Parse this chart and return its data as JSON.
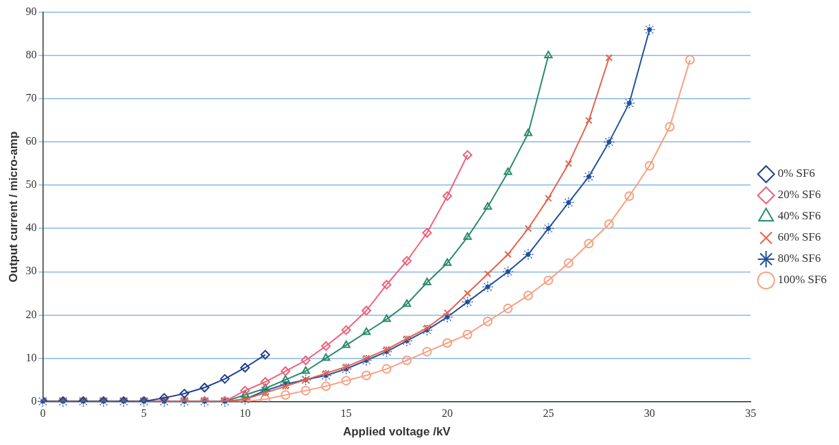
{
  "chart_data": {
    "type": "line",
    "xlabel": "Applied voltage /kV",
    "ylabel": "Output current / micro-amp",
    "xlim": [
      0,
      35
    ],
    "xticks": [
      0,
      5,
      10,
      15,
      20,
      25,
      30,
      35
    ],
    "ylim": [
      0,
      90
    ],
    "yticks": [
      0,
      10,
      20,
      30,
      40,
      50,
      60,
      70,
      80,
      90
    ],
    "grid": "y",
    "legend": "right",
    "series": [
      {
        "name": "0% SF6",
        "color": "#1f3f8f",
        "marker": "diamond",
        "x": [
          0,
          1,
          2,
          3,
          4,
          5,
          6,
          7,
          8,
          9,
          10,
          11
        ],
        "values": [
          0,
          0,
          0,
          0,
          0,
          0,
          0.8,
          1.8,
          3.2,
          5.2,
          7.8,
          10.8
        ]
      },
      {
        "name": "20% SF6",
        "color": "#f0607a",
        "marker": "diamond",
        "x": [
          0,
          1,
          2,
          3,
          4,
          5,
          6,
          7,
          8,
          9,
          10,
          11,
          12,
          13,
          14,
          15,
          16,
          17,
          18,
          19,
          20,
          21
        ],
        "values": [
          0,
          0,
          0,
          0,
          0,
          0,
          0,
          0,
          0,
          0,
          2.5,
          4.5,
          7,
          9.5,
          12.8,
          16.5,
          21,
          27,
          32.5,
          39,
          47.5,
          57
        ]
      },
      {
        "name": "40% SF6",
        "color": "#2a8a6a",
        "marker": "triangle",
        "x": [
          0,
          1,
          2,
          3,
          4,
          5,
          6,
          7,
          8,
          9,
          10,
          11,
          12,
          13,
          14,
          15,
          16,
          17,
          18,
          19,
          20,
          21,
          22,
          23,
          24,
          25
        ],
        "values": [
          0,
          0,
          0,
          0,
          0,
          0,
          0,
          0,
          0,
          0,
          1.5,
          3,
          5,
          7,
          10,
          13,
          16,
          19,
          22.5,
          27.5,
          32,
          38,
          45,
          53,
          62,
          80
        ]
      },
      {
        "name": "60% SF6",
        "color": "#e8604a",
        "marker": "cross",
        "x": [
          0,
          1,
          2,
          3,
          4,
          5,
          6,
          7,
          8,
          9,
          10,
          11,
          12,
          13,
          14,
          15,
          16,
          17,
          18,
          19,
          20,
          21,
          22,
          23,
          24,
          25,
          26,
          27,
          28
        ],
        "values": [
          0,
          0,
          0,
          0,
          0,
          0,
          0,
          0,
          0,
          0,
          0.5,
          2,
          3.5,
          5,
          6.5,
          8,
          10,
          12,
          14.5,
          17,
          20.5,
          25,
          29.5,
          34,
          40,
          47,
          55,
          65,
          79.5
        ]
      },
      {
        "name": "80% SF6",
        "color": "#2050a0",
        "marker": "star",
        "x": [
          0,
          1,
          2,
          3,
          4,
          5,
          6,
          7,
          8,
          9,
          10,
          11,
          12,
          13,
          14,
          15,
          16,
          17,
          18,
          19,
          20,
          21,
          22,
          23,
          24,
          25,
          26,
          27,
          28,
          29,
          30
        ],
        "values": [
          0,
          0,
          0,
          0,
          0,
          0,
          0,
          0,
          0,
          0,
          0.5,
          2.5,
          4,
          5,
          6,
          7.5,
          9.5,
          11.5,
          14,
          16.5,
          19.5,
          23,
          26.5,
          30,
          34,
          40,
          46,
          52,
          60,
          69,
          86
        ]
      },
      {
        "name": "100% SF6",
        "color": "#f8a080",
        "marker": "circle",
        "x": [
          0,
          1,
          2,
          3,
          4,
          5,
          6,
          7,
          8,
          9,
          10,
          11,
          12,
          13,
          14,
          15,
          16,
          17,
          18,
          19,
          20,
          21,
          22,
          23,
          24,
          25,
          26,
          27,
          28,
          29,
          30,
          31,
          32
        ],
        "values": [
          0,
          0,
          0,
          0,
          0,
          0,
          0,
          0,
          0,
          0,
          0,
          0.5,
          1.5,
          2.5,
          3.5,
          4.8,
          6,
          7.5,
          9.5,
          11.5,
          13.5,
          15.5,
          18.5,
          21.5,
          24.5,
          28,
          32,
          36.5,
          41,
          47.5,
          54.5,
          63.5,
          79
        ]
      }
    ]
  }
}
